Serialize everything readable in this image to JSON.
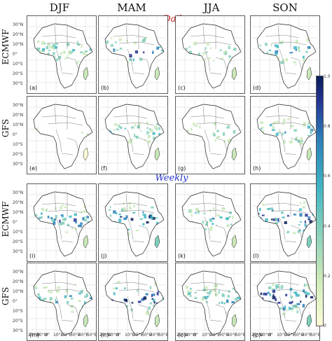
{
  "seasons": [
    "DJF",
    "MAM",
    "JJA",
    "SON"
  ],
  "sections": {
    "daily": "Daily",
    "weekly": "Weekly"
  },
  "rows": [
    "ECMWF",
    "GFS",
    "ECMWF",
    "GFS"
  ],
  "panel_labels": [
    "(a)",
    "(b)",
    "(c)",
    "(d)",
    "(e)",
    "(f)",
    "(g)",
    "(h)",
    "(i)",
    "(j)",
    "(k)",
    "(l)",
    "(m)",
    "(n)",
    "(o)",
    "(p)"
  ],
  "lat_ticks": [
    "30°N",
    "20°N",
    "10°N",
    "0°",
    "10°S",
    "20°S",
    "30°S"
  ],
  "lon_ticks": [
    "20°W",
    "10°W",
    "0°",
    "10°E",
    "20°E",
    "30°E",
    "40°E",
    "50°E"
  ],
  "colorbar": {
    "ticks": [
      "1.0",
      "0.8",
      "0.6",
      "0.4",
      "0.2",
      "0"
    ],
    "range": [
      0,
      1
    ],
    "colors": [
      "#fefdd8",
      "#c9e8b8",
      "#7fcdbb",
      "#41b6c4",
      "#2c7fb8",
      "#253494",
      "#081d58"
    ]
  },
  "intensity": [
    [
      0.35,
      0.55,
      0.3,
      0.45
    ],
    [
      0.15,
      0.35,
      0.25,
      0.4
    ],
    [
      0.55,
      0.75,
      0.4,
      0.8
    ],
    [
      0.45,
      0.7,
      0.45,
      0.75
    ]
  ]
}
